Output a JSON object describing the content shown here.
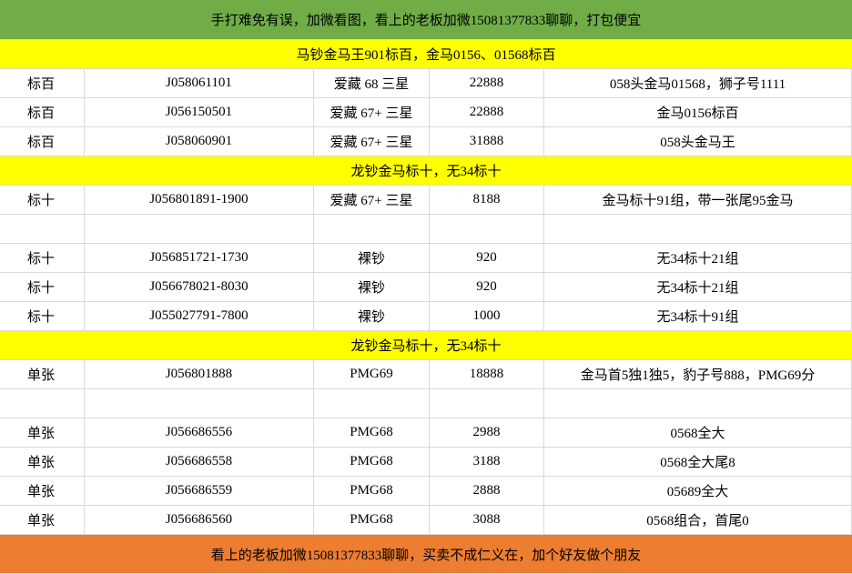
{
  "header": {
    "title": "手打难免有误，加微看图，看上的老板加微15081377833聊聊，打包便宜"
  },
  "sections": [
    {
      "title": "马钞金马王901标百，金马0156、01568标百",
      "rows": [
        [
          "标百",
          "J058061101",
          "爱藏 68 三星",
          "22888",
          "058头金马01568，狮子号1111"
        ],
        [
          "标百",
          "J056150501",
          "爱藏 67+ 三星",
          "22888",
          "金马0156标百"
        ],
        [
          "标百",
          "J058060901",
          "爱藏 67+ 三星",
          "31888",
          "058头金马王"
        ]
      ]
    },
    {
      "title": "龙钞金马标十，无34标十",
      "rows": [
        [
          "标十",
          "J056801891-1900",
          "爱藏 67+ 三星",
          "8188",
          "金马标十91组，带一张尾95金马"
        ],
        null,
        [
          "标十",
          "J056851721-1730",
          "裸钞",
          "920",
          "无34标十21组"
        ],
        [
          "标十",
          "J056678021-8030",
          "裸钞",
          "920",
          "无34标十21组"
        ],
        [
          "标十",
          "J055027791-7800",
          "裸钞",
          "1000",
          "无34标十91组"
        ]
      ]
    },
    {
      "title": "龙钞金马标十，无34标十",
      "rows": [
        [
          "单张",
          "J056801888",
          "PMG69",
          "18888",
          "金马首5独1独5，豹子号888，PMG69分"
        ],
        null,
        [
          "单张",
          "J056686556",
          "PMG68",
          "2988",
          "0568全大"
        ],
        [
          "单张",
          "J056686558",
          "PMG68",
          "3188",
          "0568全大尾8"
        ],
        [
          "单张",
          "J056686559",
          "PMG68",
          "2888",
          "05689全大"
        ],
        [
          "单张",
          "J056686560",
          "PMG68",
          "3088",
          "0568组合，首尾0"
        ]
      ]
    }
  ],
  "footer": {
    "text": "看上的老板加微15081377833聊聊，买卖不成仁义在，加个好友做个朋友"
  }
}
